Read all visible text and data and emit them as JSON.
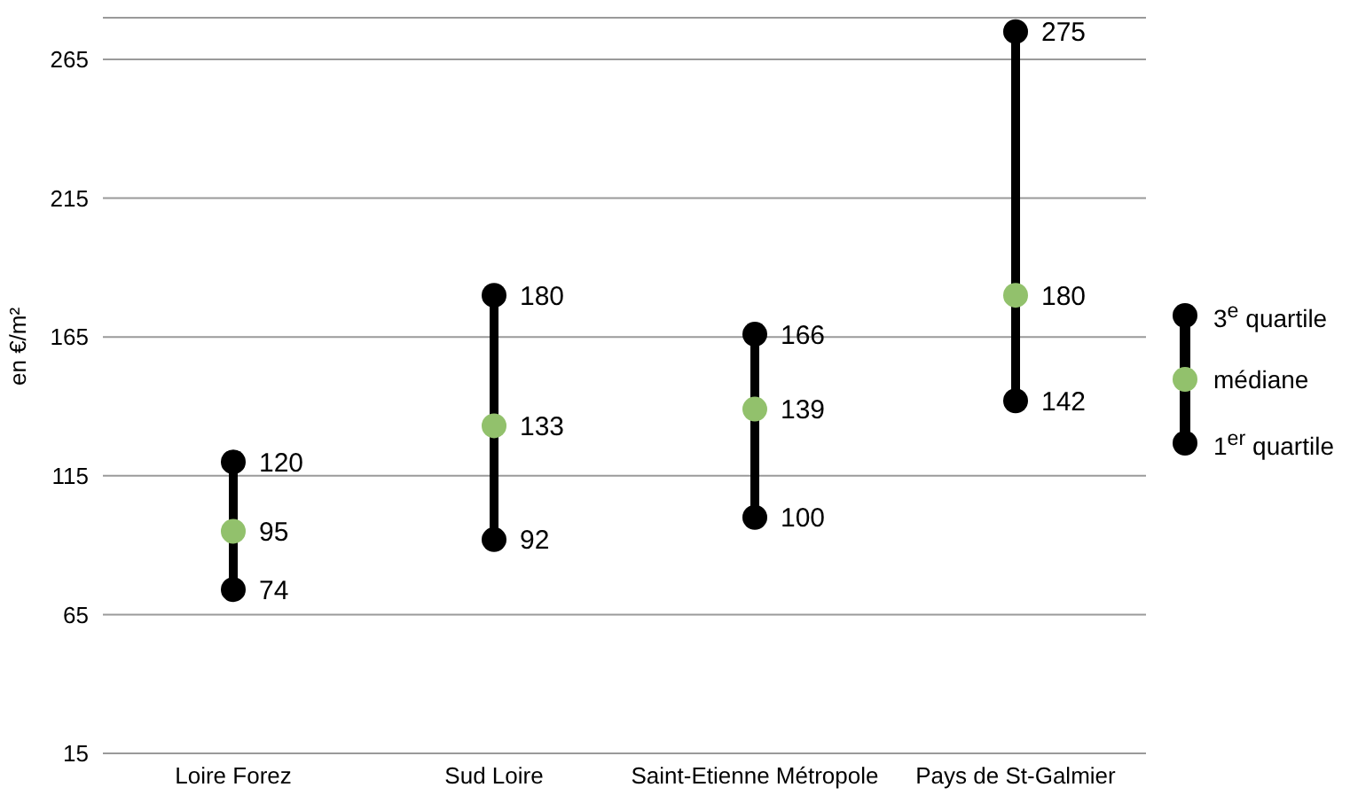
{
  "chart_data": {
    "type": "scatter",
    "ylabel": "en €/m²",
    "categories": [
      "Loire Forez",
      "Sud Loire",
      "Saint-Etienne Métropole",
      "Pays de St-Galmier"
    ],
    "ylim": [
      15,
      280
    ],
    "yticks": [
      15,
      65,
      115,
      165,
      215,
      265
    ],
    "grid": "y",
    "legend": "right",
    "marker": "circle",
    "series": [
      {
        "name": "3$^{e}$ quartile",
        "color": "#000000",
        "values": [
          120,
          180,
          166,
          275
        ],
        "value_labels": [
          "120",
          "180",
          "166",
          "275"
        ]
      },
      {
        "name": "médiane",
        "color": "#92c16c",
        "values": [
          95,
          133,
          139,
          180
        ],
        "value_labels": [
          "95",
          "133",
          "139",
          "180"
        ]
      },
      {
        "name": "1$^{er}$ quartile",
        "color": "#000000",
        "values": [
          74,
          92,
          100,
          142
        ],
        "value_labels": [
          "74",
          "92",
          "100",
          "142"
        ]
      }
    ]
  }
}
